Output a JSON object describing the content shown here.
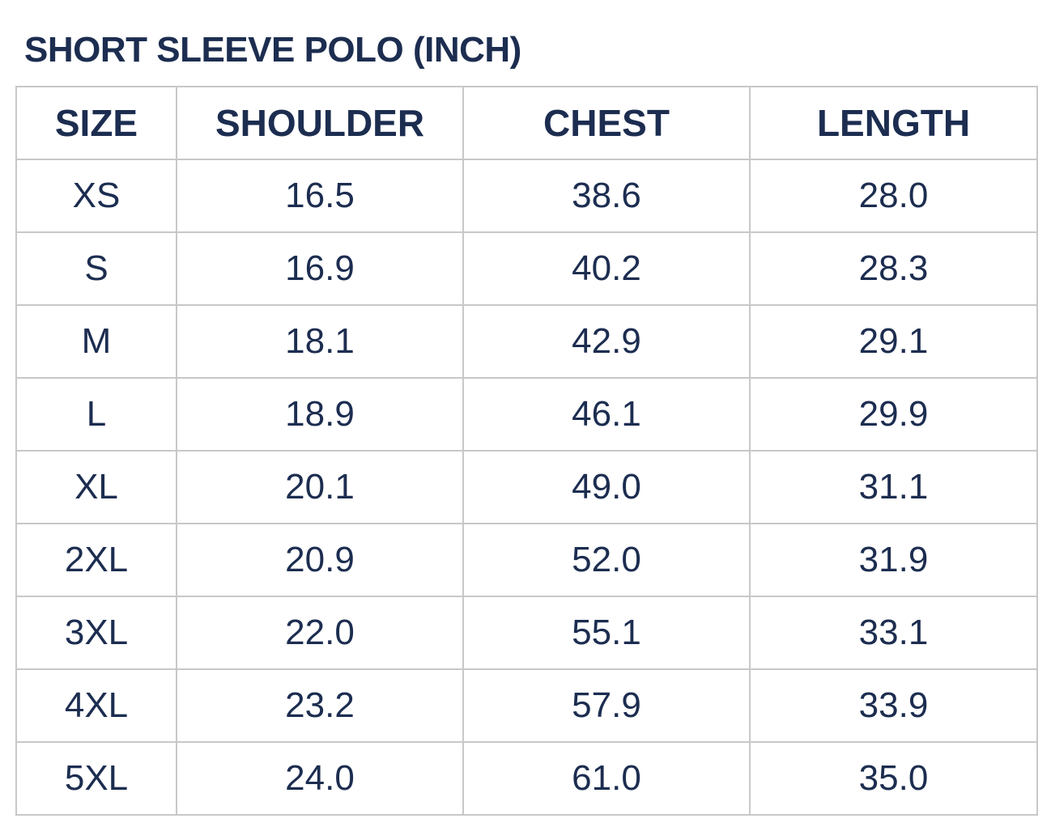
{
  "title": "SHORT SLEEVE POLO  (INCH)",
  "colors": {
    "text": "#1c2d50",
    "border": "#c8c8c8"
  },
  "table": {
    "headers": [
      "SIZE",
      "SHOULDER",
      "CHEST",
      "LENGTH"
    ],
    "rows": [
      [
        "XS",
        "16.5",
        "38.6",
        "28.0"
      ],
      [
        "S",
        "16.9",
        "40.2",
        "28.3"
      ],
      [
        "M",
        "18.1",
        "42.9",
        "29.1"
      ],
      [
        "L",
        "18.9",
        "46.1",
        "29.9"
      ],
      [
        "XL",
        "20.1",
        "49.0",
        "31.1"
      ],
      [
        "2XL",
        "20.9",
        "52.0",
        "31.9"
      ],
      [
        "3XL",
        "22.0",
        "55.1",
        "33.1"
      ],
      [
        "4XL",
        "23.2",
        "57.9",
        "33.9"
      ],
      [
        "5XL",
        "24.0",
        "61.0",
        "35.0"
      ]
    ]
  }
}
